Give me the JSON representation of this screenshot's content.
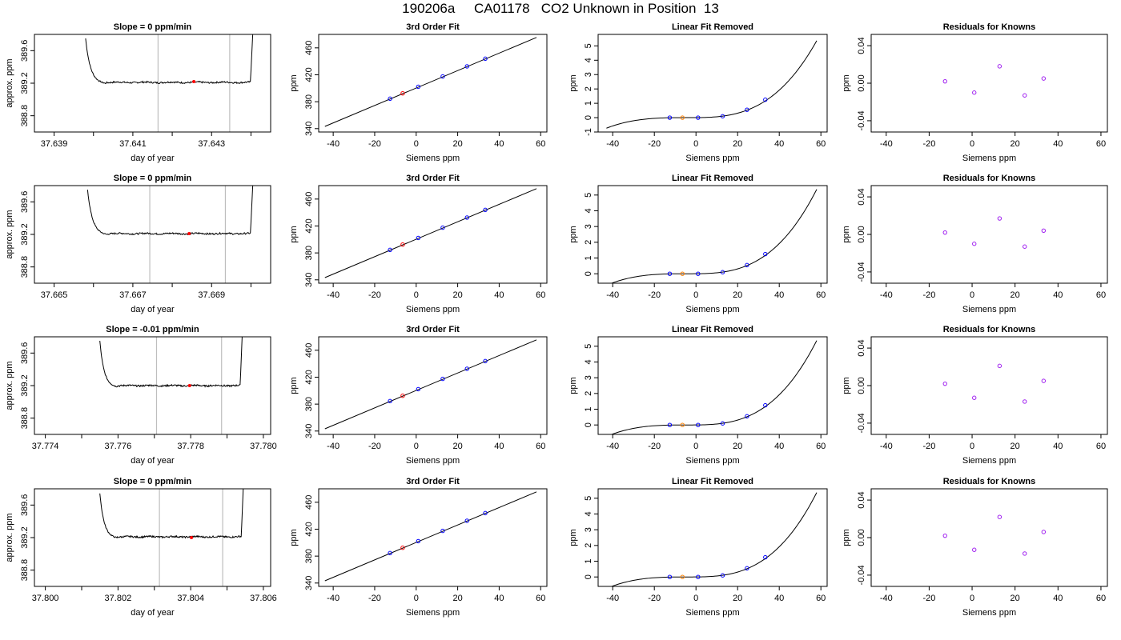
{
  "page": {
    "title": "190206a     CA01178   CO2 Unknown in Position  13"
  },
  "colors": {
    "trace": "#000000",
    "vline": "#bebebe",
    "unknown_point": "#ff0000",
    "known_point": "#0000ff",
    "unknown_fit_point": "#ff8000",
    "residual_point": "#a020f0"
  },
  "chart_data": [
    {
      "type": "line",
      "row": 0,
      "col": 0,
      "title": "Slope =  0  ppm/min",
      "xlabel": "day of year",
      "ylabel": "approx. ppm",
      "xlim": [
        37.6385,
        37.6445
      ],
      "ylim": [
        388.6,
        389.8
      ],
      "xticks": [
        37.639,
        37.64,
        37.641,
        37.642,
        37.643,
        37.644
      ],
      "xtick_labels": [
        "37.639",
        "",
        "37.641",
        "",
        "37.643",
        ""
      ],
      "yticks": [
        388.8,
        389.2,
        389.6
      ],
      "ytick_labels": [
        "388.8",
        "389.2",
        "389.6"
      ],
      "trace": {
        "x_start": 37.6398,
        "x_end": 37.64405,
        "baseline": 389.21,
        "decay_start": 389.75,
        "rise_to": 389.85
      },
      "vlines": [
        37.64164,
        37.64346
      ],
      "point": {
        "x": 37.64255,
        "y": 389.22
      }
    },
    {
      "type": "line",
      "row": 0,
      "col": 1,
      "title": "3rd Order Fit",
      "xlabel": "Siemens ppm",
      "ylabel": "ppm",
      "xlim": [
        -47,
        63
      ],
      "ylim": [
        335,
        480
      ],
      "xticks": [
        -40,
        -20,
        0,
        20,
        40,
        60
      ],
      "xtick_labels": [
        "-40",
        "-20",
        "0",
        "20",
        "40",
        "60"
      ],
      "yticks": [
        340,
        380,
        420,
        460
      ],
      "ytick_labels": [
        "340",
        "380",
        "420",
        "460"
      ],
      "line": {
        "x": [
          -44,
          58
        ],
        "y": [
          343.3,
          475.5
        ]
      },
      "knowns": {
        "x": [
          -12.6,
          1.0,
          12.8,
          24.5,
          33.3
        ],
        "y": [
          384.5,
          402.2,
          417.5,
          432.5,
          443.9
        ]
      },
      "unknown": {
        "x": [
          -6.5
        ],
        "y": [
          392.4
        ]
      }
    },
    {
      "type": "line",
      "row": 0,
      "col": 2,
      "title": "Linear Fit Removed",
      "xlabel": "Siemens ppm",
      "ylabel": "ppm",
      "xlim": [
        -47,
        63
      ],
      "ylim": [
        -1,
        5.8
      ],
      "xticks": [
        -40,
        -20,
        0,
        20,
        40,
        60
      ],
      "xtick_labels": [
        "-40",
        "-20",
        "0",
        "20",
        "40",
        "60"
      ],
      "yticks": [
        -1,
        0,
        1,
        2,
        3,
        4,
        5
      ],
      "ytick_labels": [
        "-1",
        "0",
        "1",
        "2",
        "3",
        "4",
        "5"
      ],
      "curve_range": [
        -43,
        58
      ],
      "knowns": {
        "x": [
          -12.6,
          1.0,
          12.8,
          24.5,
          33.3
        ],
        "y": [
          0.0,
          0.0,
          0.1,
          0.55,
          1.25
        ]
      },
      "unknown": {
        "x": [
          -6.5
        ],
        "y": [
          0.0
        ]
      }
    },
    {
      "type": "scatter",
      "row": 0,
      "col": 3,
      "title": "Residuals for Knowns",
      "xlabel": "Siemens ppm",
      "ylabel": "ppm",
      "xlim": [
        -47,
        63
      ],
      "ylim": [
        -0.052,
        0.052
      ],
      "xticks": [
        -40,
        -20,
        0,
        20,
        40,
        60
      ],
      "xtick_labels": [
        "-40",
        "-20",
        "0",
        "20",
        "40",
        "60"
      ],
      "yticks": [
        -0.04,
        0.0,
        0.04
      ],
      "ytick_labels": [
        "-0.04",
        "0.00",
        "0.04"
      ],
      "points": {
        "x": [
          -12.6,
          1.0,
          12.8,
          24.5,
          33.3
        ],
        "y": [
          0.002,
          -0.01,
          0.018,
          -0.013,
          0.005
        ]
      }
    },
    {
      "type": "line",
      "row": 1,
      "col": 0,
      "title": "Slope =  0  ppm/min",
      "xlabel": "day of year",
      "ylabel": "approx. ppm",
      "xlim": [
        37.6645,
        37.6705
      ],
      "ylim": [
        388.6,
        389.8
      ],
      "xticks": [
        37.665,
        37.666,
        37.667,
        37.668,
        37.669,
        37.67
      ],
      "xtick_labels": [
        "37.665",
        "",
        "37.667",
        "",
        "37.669",
        ""
      ],
      "yticks": [
        388.8,
        389.2,
        389.6
      ],
      "ytick_labels": [
        "388.8",
        "389.2",
        "389.6"
      ],
      "trace": {
        "x_start": 37.66585,
        "x_end": 37.67005,
        "baseline": 389.21,
        "decay_start": 389.75,
        "rise_to": 389.85
      },
      "vlines": [
        37.66743,
        37.66935
      ],
      "point": {
        "x": 37.66843,
        "y": 389.21
      }
    },
    {
      "type": "line",
      "row": 1,
      "col": 1,
      "title": "3rd Order Fit",
      "xlabel": "Siemens ppm",
      "ylabel": "ppm",
      "xlim": [
        -47,
        63
      ],
      "ylim": [
        335,
        480
      ],
      "xticks": [
        -40,
        -20,
        0,
        20,
        40,
        60
      ],
      "xtick_labels": [
        "-40",
        "-20",
        "0",
        "20",
        "40",
        "60"
      ],
      "yticks": [
        340,
        380,
        420,
        460
      ],
      "ytick_labels": [
        "340",
        "380",
        "420",
        "460"
      ],
      "line": {
        "x": [
          -44,
          58
        ],
        "y": [
          343.3,
          475.5
        ]
      },
      "knowns": {
        "x": [
          -12.6,
          1.0,
          12.8,
          24.5,
          33.3
        ],
        "y": [
          384.5,
          402.2,
          417.5,
          432.5,
          443.9
        ]
      },
      "unknown": {
        "x": [
          -6.5
        ],
        "y": [
          392.4
        ]
      }
    },
    {
      "type": "line",
      "row": 1,
      "col": 2,
      "title": "Linear Fit Removed",
      "xlabel": "Siemens ppm",
      "ylabel": "ppm",
      "xlim": [
        -47,
        63
      ],
      "ylim": [
        -0.6,
        5.6
      ],
      "xticks": [
        -40,
        -20,
        0,
        20,
        40,
        60
      ],
      "xtick_labels": [
        "-40",
        "-20",
        "0",
        "20",
        "40",
        "60"
      ],
      "yticks": [
        0,
        1,
        2,
        3,
        4,
        5
      ],
      "ytick_labels": [
        "0",
        "1",
        "2",
        "3",
        "4",
        "5"
      ],
      "curve_range": [
        -43,
        58
      ],
      "knowns": {
        "x": [
          -12.6,
          1.0,
          12.8,
          24.5,
          33.3
        ],
        "y": [
          0.0,
          0.0,
          0.1,
          0.55,
          1.25
        ]
      },
      "unknown": {
        "x": [
          -6.5
        ],
        "y": [
          0.0
        ]
      }
    },
    {
      "type": "scatter",
      "row": 1,
      "col": 3,
      "title": "Residuals for Knowns",
      "xlabel": "Siemens ppm",
      "ylabel": "ppm",
      "xlim": [
        -47,
        63
      ],
      "ylim": [
        -0.052,
        0.052
      ],
      "xticks": [
        -40,
        -20,
        0,
        20,
        40,
        60
      ],
      "xtick_labels": [
        "-40",
        "-20",
        "0",
        "20",
        "40",
        "60"
      ],
      "yticks": [
        -0.04,
        0.0,
        0.04
      ],
      "ytick_labels": [
        "-0.04",
        "0.00",
        "0.04"
      ],
      "points": {
        "x": [
          -12.6,
          1.0,
          12.8,
          24.5,
          33.3
        ],
        "y": [
          0.002,
          -0.01,
          0.017,
          -0.013,
          0.004
        ]
      }
    },
    {
      "type": "line",
      "row": 2,
      "col": 0,
      "title": "Slope =  -0.01  ppm/min",
      "xlabel": "day of year",
      "ylabel": "approx. ppm",
      "xlim": [
        37.7737,
        37.7802
      ],
      "ylim": [
        388.6,
        389.8
      ],
      "xticks": [
        37.774,
        37.775,
        37.776,
        37.777,
        37.778,
        37.779,
        37.78
      ],
      "xtick_labels": [
        "37.774",
        "",
        "37.776",
        "",
        "37.778",
        "",
        "37.780"
      ],
      "yticks": [
        388.8,
        389.2,
        389.6
      ],
      "ytick_labels": [
        "388.8",
        "389.2",
        "389.6"
      ],
      "trace": {
        "x_start": 37.7755,
        "x_end": 37.77942,
        "baseline": 389.2,
        "decay_start": 389.75,
        "rise_to": 389.85
      },
      "vlines": [
        37.77706,
        37.77885
      ],
      "point": {
        "x": 37.77797,
        "y": 389.2
      }
    },
    {
      "type": "line",
      "row": 2,
      "col": 1,
      "title": "3rd Order Fit",
      "xlabel": "Siemens ppm",
      "ylabel": "ppm",
      "xlim": [
        -47,
        63
      ],
      "ylim": [
        335,
        480
      ],
      "xticks": [
        -40,
        -20,
        0,
        20,
        40,
        60
      ],
      "xtick_labels": [
        "-40",
        "-20",
        "0",
        "20",
        "40",
        "60"
      ],
      "yticks": [
        340,
        380,
        420,
        460
      ],
      "ytick_labels": [
        "340",
        "380",
        "420",
        "460"
      ],
      "line": {
        "x": [
          -44,
          58
        ],
        "y": [
          343.3,
          475.5
        ]
      },
      "knowns": {
        "x": [
          -12.6,
          1.0,
          12.8,
          24.5,
          33.3
        ],
        "y": [
          384.5,
          402.2,
          417.5,
          432.5,
          443.9
        ]
      },
      "unknown": {
        "x": [
          -6.5
        ],
        "y": [
          392.4
        ]
      }
    },
    {
      "type": "line",
      "row": 2,
      "col": 2,
      "title": "Linear Fit Removed",
      "xlabel": "Siemens ppm",
      "ylabel": "ppm",
      "xlim": [
        -47,
        63
      ],
      "ylim": [
        -0.6,
        5.6
      ],
      "xticks": [
        -40,
        -20,
        0,
        20,
        40,
        60
      ],
      "xtick_labels": [
        "-40",
        "-20",
        "0",
        "20",
        "40",
        "60"
      ],
      "yticks": [
        0,
        1,
        2,
        3,
        4,
        5
      ],
      "ytick_labels": [
        "0",
        "1",
        "2",
        "3",
        "4",
        "5"
      ],
      "curve_range": [
        -43,
        58
      ],
      "knowns": {
        "x": [
          -12.6,
          1.0,
          12.8,
          24.5,
          33.3
        ],
        "y": [
          0.0,
          0.0,
          0.1,
          0.55,
          1.25
        ]
      },
      "unknown": {
        "x": [
          -6.5
        ],
        "y": [
          0.0
        ]
      }
    },
    {
      "type": "scatter",
      "row": 2,
      "col": 3,
      "title": "Residuals for Knowns",
      "xlabel": "Siemens ppm",
      "ylabel": "ppm",
      "xlim": [
        -47,
        63
      ],
      "ylim": [
        -0.052,
        0.052
      ],
      "xticks": [
        -40,
        -20,
        0,
        20,
        40,
        60
      ],
      "xtick_labels": [
        "-40",
        "-20",
        "0",
        "20",
        "40",
        "60"
      ],
      "yticks": [
        -0.04,
        0.0,
        0.04
      ],
      "ytick_labels": [
        "-0.04",
        "0.00",
        "0.04"
      ],
      "points": {
        "x": [
          -12.6,
          1.0,
          12.8,
          24.5,
          33.3
        ],
        "y": [
          0.002,
          -0.013,
          0.021,
          -0.017,
          0.005
        ]
      }
    },
    {
      "type": "line",
      "row": 3,
      "col": 0,
      "title": "Slope =  0  ppm/min",
      "xlabel": "day of year",
      "ylabel": "approx. ppm",
      "xlim": [
        37.7997,
        37.8062
      ],
      "ylim": [
        388.6,
        389.8
      ],
      "xticks": [
        37.8,
        37.801,
        37.802,
        37.803,
        37.804,
        37.805,
        37.806
      ],
      "xtick_labels": [
        "37.800",
        "",
        "37.802",
        "",
        "37.804",
        "",
        "37.806"
      ],
      "yticks": [
        388.8,
        389.2,
        389.6
      ],
      "ytick_labels": [
        "388.8",
        "389.2",
        "389.6"
      ],
      "trace": {
        "x_start": 37.8015,
        "x_end": 37.80545,
        "baseline": 389.21,
        "decay_start": 389.75,
        "rise_to": 389.85
      },
      "vlines": [
        37.80314,
        37.80488
      ],
      "point": {
        "x": 37.80402,
        "y": 389.2
      }
    },
    {
      "type": "line",
      "row": 3,
      "col": 1,
      "title": "3rd Order Fit",
      "xlabel": "Siemens ppm",
      "ylabel": "ppm",
      "xlim": [
        -47,
        63
      ],
      "ylim": [
        335,
        480
      ],
      "xticks": [
        -40,
        -20,
        0,
        20,
        40,
        60
      ],
      "xtick_labels": [
        "-40",
        "-20",
        "0",
        "20",
        "40",
        "60"
      ],
      "yticks": [
        340,
        380,
        420,
        460
      ],
      "ytick_labels": [
        "340",
        "380",
        "420",
        "460"
      ],
      "line": {
        "x": [
          -44,
          58
        ],
        "y": [
          343.3,
          475.5
        ]
      },
      "knowns": {
        "x": [
          -12.6,
          1.0,
          12.8,
          24.5,
          33.3
        ],
        "y": [
          384.5,
          402.2,
          417.5,
          432.5,
          443.9
        ]
      },
      "unknown": {
        "x": [
          -6.5
        ],
        "y": [
          392.4
        ]
      }
    },
    {
      "type": "line",
      "row": 3,
      "col": 2,
      "title": "Linear Fit Removed",
      "xlabel": "Siemens ppm",
      "ylabel": "ppm",
      "xlim": [
        -47,
        63
      ],
      "ylim": [
        -0.6,
        5.6
      ],
      "xticks": [
        -40,
        -20,
        0,
        20,
        40,
        60
      ],
      "xtick_labels": [
        "-40",
        "-20",
        "0",
        "20",
        "40",
        "60"
      ],
      "yticks": [
        0,
        1,
        2,
        3,
        4,
        5
      ],
      "ytick_labels": [
        "0",
        "1",
        "2",
        "3",
        "4",
        "5"
      ],
      "curve_range": [
        -43,
        58
      ],
      "knowns": {
        "x": [
          -12.6,
          1.0,
          12.8,
          24.5,
          33.3
        ],
        "y": [
          0.0,
          0.0,
          0.1,
          0.55,
          1.25
        ]
      },
      "unknown": {
        "x": [
          -6.5
        ],
        "y": [
          0.0
        ]
      }
    },
    {
      "type": "scatter",
      "row": 3,
      "col": 3,
      "title": "Residuals for Knowns",
      "xlabel": "Siemens ppm",
      "ylabel": "ppm",
      "xlim": [
        -47,
        63
      ],
      "ylim": [
        -0.052,
        0.052
      ],
      "xticks": [
        -40,
        -20,
        0,
        20,
        40,
        60
      ],
      "xtick_labels": [
        "-40",
        "-20",
        "0",
        "20",
        "40",
        "60"
      ],
      "yticks": [
        -0.04,
        0.0,
        0.04
      ],
      "ytick_labels": [
        "-0.04",
        "0.00",
        "0.04"
      ],
      "points": {
        "x": [
          -12.6,
          1.0,
          12.8,
          24.5,
          33.3
        ],
        "y": [
          0.002,
          -0.013,
          0.022,
          -0.017,
          0.006
        ]
      }
    }
  ]
}
